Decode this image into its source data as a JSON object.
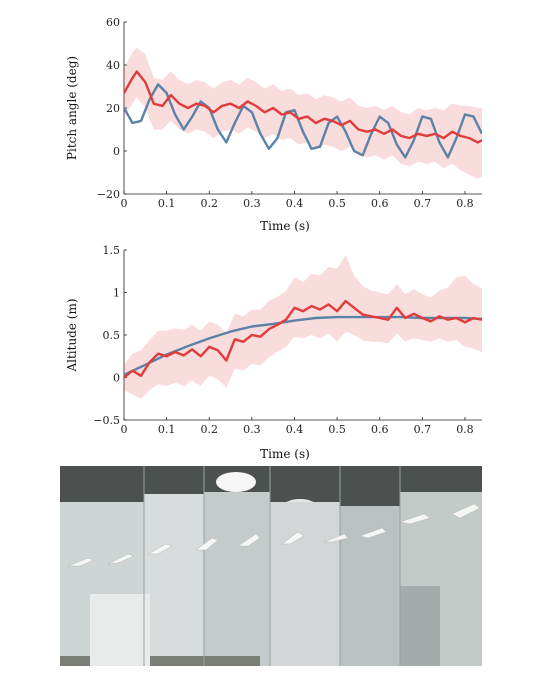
{
  "chart_data": [
    {
      "type": "line",
      "ylabel": "Pitch angle (deg)",
      "xlabel": "Time (s)",
      "xlim": [
        0,
        0.84
      ],
      "ylim": [
        -20,
        60
      ],
      "xticks": [
        "0",
        "0.1",
        "0.2",
        "0.3",
        "0.4",
        "0.5",
        "0.6",
        "0.7",
        "0.8"
      ],
      "yticks": [
        "−20",
        "0",
        "20",
        "40",
        "60"
      ],
      "grid": false,
      "series": [
        {
          "color": "#5b82a8",
          "x": [
            0,
            0.02,
            0.04,
            0.06,
            0.08,
            0.1,
            0.12,
            0.14,
            0.16,
            0.18,
            0.2,
            0.22,
            0.24,
            0.26,
            0.28,
            0.3,
            0.32,
            0.34,
            0.36,
            0.38,
            0.4,
            0.42,
            0.44,
            0.46,
            0.48,
            0.5,
            0.52,
            0.54,
            0.56,
            0.58,
            0.6,
            0.62,
            0.64,
            0.66,
            0.68,
            0.7,
            0.72,
            0.74,
            0.76,
            0.78,
            0.8,
            0.82,
            0.84
          ],
          "y": [
            20,
            13,
            14,
            24,
            31,
            27,
            17,
            10,
            16,
            23,
            20,
            10,
            4,
            13,
            21,
            18,
            8,
            1,
            6,
            18,
            19,
            9,
            1,
            2,
            13,
            16,
            9,
            0,
            -2,
            8,
            16,
            13,
            3,
            -3,
            5,
            16,
            15,
            4,
            -3,
            6,
            17,
            16,
            8
          ]
        },
        {
          "color": "#e03c3c",
          "band": true,
          "x": [
            0,
            0.02,
            0.03,
            0.05,
            0.07,
            0.09,
            0.11,
            0.13,
            0.15,
            0.17,
            0.19,
            0.21,
            0.23,
            0.25,
            0.27,
            0.29,
            0.31,
            0.33,
            0.35,
            0.37,
            0.39,
            0.41,
            0.43,
            0.45,
            0.47,
            0.49,
            0.51,
            0.53,
            0.55,
            0.57,
            0.59,
            0.61,
            0.63,
            0.65,
            0.67,
            0.69,
            0.71,
            0.73,
            0.75,
            0.77,
            0.79,
            0.81,
            0.83,
            0.84
          ],
          "y": [
            27,
            34,
            37,
            32,
            22,
            21,
            26,
            22,
            20,
            22,
            21,
            18,
            21,
            22,
            20,
            23,
            21,
            18,
            20,
            17,
            18,
            15,
            16,
            13,
            15,
            14,
            12,
            14,
            10,
            9,
            10,
            8,
            10,
            7,
            6,
            8,
            7,
            8,
            6,
            9,
            7,
            6,
            4,
            5
          ],
          "lower": [
            16,
            22,
            25,
            20,
            10,
            10,
            14,
            10,
            8,
            10,
            9,
            6,
            9,
            10,
            8,
            11,
            9,
            6,
            8,
            5,
            6,
            3,
            4,
            1,
            3,
            2,
            0,
            2,
            -2,
            -3,
            -2,
            -4,
            -2,
            -6,
            -7,
            -5,
            -6,
            -5,
            -8,
            -6,
            -9,
            -11,
            -13,
            -12
          ],
          "upper": [
            38,
            46,
            48,
            45,
            34,
            33,
            37,
            33,
            31,
            33,
            32,
            29,
            32,
            33,
            31,
            34,
            32,
            29,
            31,
            28,
            29,
            26,
            27,
            24,
            26,
            25,
            23,
            25,
            21,
            20,
            21,
            19,
            21,
            18,
            17,
            20,
            19,
            20,
            19,
            22,
            21,
            21,
            20,
            20
          ]
        }
      ]
    },
    {
      "type": "line",
      "ylabel": "Altitude (m)",
      "xlabel": "Time (s)",
      "xlim": [
        0,
        0.84
      ],
      "ylim": [
        -0.5,
        1.5
      ],
      "xticks": [
        "0",
        "0.1",
        "0.2",
        "0.3",
        "0.4",
        "0.5",
        "0.6",
        "0.7",
        "0.8"
      ],
      "yticks": [
        "−0.5",
        "0",
        "0.5",
        "1",
        "1.5"
      ],
      "grid": false,
      "series": [
        {
          "color": "#5b82a8",
          "x": [
            0,
            0.05,
            0.1,
            0.15,
            0.2,
            0.25,
            0.3,
            0.35,
            0.4,
            0.45,
            0.5,
            0.55,
            0.6,
            0.65,
            0.7,
            0.75,
            0.8,
            0.84
          ],
          "y": [
            0.03,
            0.15,
            0.27,
            0.37,
            0.46,
            0.54,
            0.6,
            0.63,
            0.67,
            0.7,
            0.71,
            0.71,
            0.71,
            0.71,
            0.7,
            0.7,
            0.7,
            0.69
          ]
        },
        {
          "color": "#e03c3c",
          "band": true,
          "x": [
            0,
            0.02,
            0.04,
            0.06,
            0.08,
            0.1,
            0.12,
            0.14,
            0.16,
            0.18,
            0.2,
            0.22,
            0.24,
            0.26,
            0.28,
            0.3,
            0.32,
            0.34,
            0.36,
            0.38,
            0.4,
            0.42,
            0.44,
            0.46,
            0.48,
            0.5,
            0.52,
            0.54,
            0.56,
            0.58,
            0.6,
            0.62,
            0.64,
            0.66,
            0.68,
            0.7,
            0.72,
            0.74,
            0.76,
            0.78,
            0.8,
            0.82,
            0.84
          ],
          "y": [
            0.0,
            0.08,
            0.02,
            0.18,
            0.28,
            0.25,
            0.3,
            0.26,
            0.33,
            0.25,
            0.36,
            0.32,
            0.2,
            0.45,
            0.42,
            0.5,
            0.48,
            0.57,
            0.62,
            0.68,
            0.82,
            0.78,
            0.84,
            0.8,
            0.86,
            0.78,
            0.9,
            0.82,
            0.74,
            0.72,
            0.7,
            0.68,
            0.82,
            0.7,
            0.75,
            0.7,
            0.66,
            0.72,
            0.68,
            0.7,
            0.65,
            0.7,
            0.68
          ],
          "lower": [
            -0.15,
            -0.2,
            -0.25,
            -0.15,
            -0.08,
            -0.1,
            -0.06,
            -0.1,
            -0.04,
            -0.1,
            0.02,
            -0.02,
            -0.12,
            0.1,
            0.08,
            0.16,
            0.14,
            0.24,
            0.3,
            0.36,
            0.48,
            0.46,
            0.5,
            0.46,
            0.52,
            0.42,
            0.54,
            0.5,
            0.44,
            0.42,
            0.42,
            0.4,
            0.52,
            0.42,
            0.46,
            0.44,
            0.42,
            0.46,
            0.42,
            0.44,
            0.36,
            0.34,
            0.3
          ],
          "upper": [
            0.15,
            0.28,
            0.32,
            0.44,
            0.55,
            0.55,
            0.58,
            0.56,
            0.62,
            0.55,
            0.66,
            0.62,
            0.52,
            0.75,
            0.72,
            0.8,
            0.8,
            0.9,
            0.95,
            1.02,
            1.18,
            1.12,
            1.22,
            1.2,
            1.3,
            1.28,
            1.44,
            1.2,
            1.08,
            1.02,
            1.0,
            0.98,
            1.1,
            0.98,
            1.04,
            0.98,
            0.94,
            1.02,
            1.06,
            1.18,
            1.2,
            1.1,
            1.05
          ]
        }
      ]
    }
  ],
  "photo": {
    "background": "#8e9592",
    "ceiling_color": "#4a4f4d",
    "wall_color": "#d9ddde",
    "light_color": "#ffffff",
    "frames": 9
  }
}
